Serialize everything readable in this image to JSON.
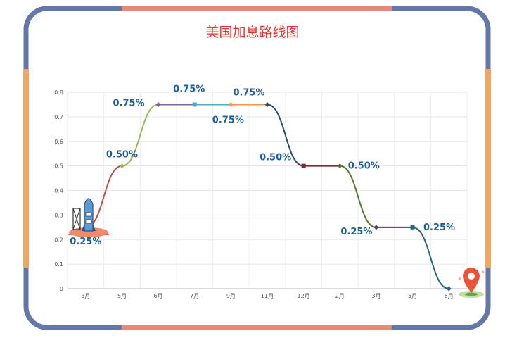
{
  "title": "美国加息路线图",
  "chart_data": {
    "type": "line",
    "title": "美国加息路线图",
    "xlabel": "",
    "ylabel": "",
    "categories": [
      "3月",
      "5月",
      "6月",
      "7月",
      "9月",
      "11月",
      "12月",
      "2月",
      "3月",
      "5月",
      "6月"
    ],
    "values": [
      0.25,
      0.5,
      0.75,
      0.75,
      0.75,
      0.75,
      0.5,
      0.5,
      0.25,
      0.25,
      0
    ],
    "data_labels": [
      "0.25%",
      "0.50%",
      "0.75%",
      "0.75%",
      "0.75%",
      "0.75%",
      "0.50%",
      "0.50%",
      "0.25%",
      "0.25%",
      ""
    ],
    "ylim": [
      0,
      0.8
    ],
    "yticks": [
      "0",
      "0.1",
      "0.2",
      "0.3",
      "0.4",
      "0.5",
      "0.6",
      "0.7",
      "0.8"
    ],
    "grid": true,
    "smooth": true,
    "segment_colors": [
      "#c0504d",
      "#9bbb59",
      "#8064a2",
      "#4bacc6",
      "#f79646",
      "#2c4d75",
      "#772c2a",
      "#5f7530",
      "#4d3b62",
      "#276a7c"
    ],
    "decorations": [
      "rocket-icon",
      "location-pin-icon"
    ]
  }
}
